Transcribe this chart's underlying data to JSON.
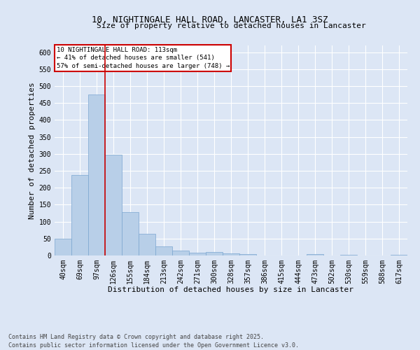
{
  "title_line1": "10, NIGHTINGALE HALL ROAD, LANCASTER, LA1 3SZ",
  "title_line2": "Size of property relative to detached houses in Lancaster",
  "xlabel": "Distribution of detached houses by size in Lancaster",
  "ylabel": "Number of detached properties",
  "categories": [
    "40sqm",
    "69sqm",
    "97sqm",
    "126sqm",
    "155sqm",
    "184sqm",
    "213sqm",
    "242sqm",
    "271sqm",
    "300sqm",
    "328sqm",
    "357sqm",
    "386sqm",
    "415sqm",
    "444sqm",
    "473sqm",
    "502sqm",
    "530sqm",
    "559sqm",
    "588sqm",
    "617sqm"
  ],
  "values": [
    49,
    238,
    475,
    298,
    128,
    65,
    27,
    14,
    8,
    10,
    7,
    5,
    0,
    0,
    0,
    4,
    0,
    2,
    0,
    0,
    3
  ],
  "bar_color": "#b8cfe8",
  "bar_edge_color": "#7aa6d0",
  "red_line_x": 2.5,
  "ylim": [
    0,
    620
  ],
  "yticks": [
    0,
    50,
    100,
    150,
    200,
    250,
    300,
    350,
    400,
    450,
    500,
    550,
    600
  ],
  "annotation_box_text_line1": "10 NIGHTINGALE HALL ROAD: 113sqm",
  "annotation_box_text_line2": "← 41% of detached houses are smaller (541)",
  "annotation_box_text_line3": "57% of semi-detached houses are larger (748) →",
  "footer_line1": "Contains HM Land Registry data © Crown copyright and database right 2025.",
  "footer_line2": "Contains public sector information licensed under the Open Government Licence v3.0.",
  "bg_color": "#dce6f5",
  "plot_bg_color": "#dce6f5",
  "grid_color": "#ffffff",
  "annotation_box_color": "#ffffff",
  "annotation_box_edge_color": "#cc0000",
  "red_line_color": "#cc0000",
  "title1_fontsize": 9,
  "title2_fontsize": 8,
  "xlabel_fontsize": 8,
  "ylabel_fontsize": 8,
  "tick_fontsize": 7,
  "ann_fontsize": 6.5,
  "footer_fontsize": 6
}
